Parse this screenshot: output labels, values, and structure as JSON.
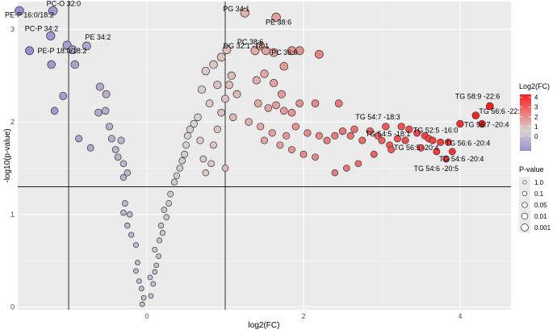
{
  "chart_data": {
    "type": "scatter",
    "xlabel": "log2(FC)",
    "ylabel": "-log10(p-value)",
    "xlim": [
      -1.65,
      4.65
    ],
    "ylim": [
      -0.03,
      3.3
    ],
    "x_ticks": [
      0,
      2,
      4
    ],
    "y_ticks": [
      0,
      1,
      2,
      3
    ],
    "grid": true,
    "background": "#ebebeb",
    "cutoff_lines": {
      "x": [
        -1,
        1
      ],
      "y": [
        1.3
      ]
    },
    "color_scale": {
      "title": "Log2(FC)",
      "range": [
        -1.5,
        4.3
      ],
      "stops": [
        {
          "value": -1.5,
          "color": "#9a8ed0"
        },
        {
          "value": 0.6,
          "color": "#d8d2d0"
        },
        {
          "value": 4.3,
          "color": "#ff1f1f"
        }
      ],
      "ticks": [
        "4",
        "3",
        "2",
        "1",
        "0"
      ]
    },
    "size_legend": {
      "title": "P-value",
      "entries": [
        "1.0",
        "0.1",
        "0.05",
        "0.01",
        "0.001"
      ]
    },
    "points": [
      [
        -1.63,
        3.2
      ],
      [
        -1.2,
        3.2
      ],
      [
        -1.5,
        2.77
      ],
      [
        -1.23,
        2.93
      ],
      [
        -1.02,
        2.83
      ],
      [
        -0.95,
        2.78
      ],
      [
        -0.77,
        2.82
      ],
      [
        -1.22,
        2.62
      ],
      [
        -0.92,
        2.62
      ],
      [
        -1.07,
        2.28
      ],
      [
        -1.18,
        2.12
      ],
      [
        -0.6,
        2.38
      ],
      [
        -0.52,
        2.3
      ],
      [
        -0.62,
        2.1
      ],
      [
        -0.53,
        2.12
      ],
      [
        -0.87,
        1.82
      ],
      [
        -0.48,
        1.95
      ],
      [
        -0.45,
        1.82
      ],
      [
        -0.4,
        1.7
      ],
      [
        -0.33,
        1.8
      ],
      [
        -0.37,
        1.62
      ],
      [
        -0.3,
        1.55
      ],
      [
        -0.72,
        1.72
      ],
      [
        -0.25,
        1.45
      ],
      [
        -0.3,
        1.4
      ],
      [
        -0.28,
        1.12
      ],
      [
        -0.3,
        1.02
      ],
      [
        -0.22,
        1.0
      ],
      [
        -0.25,
        0.88
      ],
      [
        -0.2,
        0.78
      ],
      [
        -0.14,
        0.67
      ],
      [
        -0.12,
        0.48
      ],
      [
        -0.14,
        0.39
      ],
      [
        -0.1,
        0.28
      ],
      [
        -0.07,
        0.2
      ],
      [
        -0.04,
        0.1
      ],
      [
        -0.06,
        0.03
      ],
      [
        0.05,
        0.12
      ],
      [
        0.08,
        0.25
      ],
      [
        0.04,
        0.32
      ],
      [
        0.1,
        0.38
      ],
      [
        0.12,
        0.45
      ],
      [
        0.15,
        0.55
      ],
      [
        0.1,
        0.62
      ],
      [
        0.16,
        0.72
      ],
      [
        0.2,
        0.8
      ],
      [
        0.18,
        0.88
      ],
      [
        0.25,
        0.97
      ],
      [
        0.22,
        1.05
      ],
      [
        0.28,
        1.12
      ],
      [
        0.3,
        1.22
      ],
      [
        0.35,
        1.35
      ],
      [
        0.38,
        1.42
      ],
      [
        0.42,
        1.5
      ],
      [
        0.45,
        1.58
      ],
      [
        0.48,
        1.65
      ],
      [
        0.5,
        1.75
      ],
      [
        0.52,
        1.85
      ],
      [
        0.55,
        1.92
      ],
      [
        0.6,
        1.98
      ],
      [
        0.65,
        2.05
      ],
      [
        0.68,
        1.8
      ],
      [
        0.72,
        1.6
      ],
      [
        0.75,
        1.45
      ],
      [
        0.82,
        1.55
      ],
      [
        0.85,
        1.75
      ],
      [
        0.9,
        1.92
      ],
      [
        0.95,
        2.1
      ],
      [
        1.0,
        2.25
      ],
      [
        1.05,
        2.4
      ],
      [
        0.9,
        2.4
      ],
      [
        0.8,
        2.2
      ],
      [
        0.7,
        2.35
      ],
      [
        0.75,
        2.55
      ],
      [
        0.85,
        2.62
      ],
      [
        0.95,
        2.7
      ],
      [
        1.02,
        2.78
      ],
      [
        1.08,
        2.5
      ],
      [
        1.15,
        2.3
      ],
      [
        1.1,
        2.05
      ],
      [
        1.0,
        1.5
      ],
      [
        1.25,
        3.18
      ],
      [
        1.65,
        3.13
      ],
      [
        1.38,
        2.77
      ],
      [
        1.45,
        2.82
      ],
      [
        1.52,
        2.77
      ],
      [
        1.62,
        2.75
      ],
      [
        1.75,
        2.6
      ],
      [
        1.85,
        2.77
      ],
      [
        1.95,
        2.77
      ],
      [
        2.2,
        2.73
      ],
      [
        1.4,
        2.45
      ],
      [
        1.5,
        2.52
      ],
      [
        1.62,
        2.42
      ],
      [
        1.72,
        2.3
      ],
      [
        1.42,
        2.2
      ],
      [
        1.55,
        2.15
      ],
      [
        1.65,
        2.18
      ],
      [
        1.75,
        2.12
      ],
      [
        1.85,
        2.1
      ],
      [
        1.95,
        2.2
      ],
      [
        2.15,
        2.2
      ],
      [
        1.3,
        2.0
      ],
      [
        1.45,
        1.95
      ],
      [
        1.6,
        1.88
      ],
      [
        1.78,
        1.85
      ],
      [
        1.9,
        1.95
      ],
      [
        2.05,
        1.88
      ],
      [
        2.2,
        1.85
      ],
      [
        1.5,
        1.8
      ],
      [
        1.7,
        1.75
      ],
      [
        1.85,
        1.7
      ],
      [
        2.0,
        1.65
      ],
      [
        2.15,
        1.62
      ],
      [
        2.45,
        2.2
      ],
      [
        2.3,
        1.8
      ],
      [
        2.4,
        1.85
      ],
      [
        2.5,
        1.9
      ],
      [
        2.6,
        1.85
      ],
      [
        2.65,
        1.92
      ],
      [
        2.75,
        1.8
      ],
      [
        2.85,
        1.9
      ],
      [
        2.95,
        1.85
      ],
      [
        3.05,
        1.95
      ],
      [
        2.55,
        1.5
      ],
      [
        2.4,
        1.45
      ],
      [
        2.7,
        1.55
      ],
      [
        2.9,
        1.65
      ],
      [
        3.0,
        1.8
      ],
      [
        3.1,
        1.75
      ],
      [
        3.2,
        1.82
      ],
      [
        3.25,
        1.95
      ],
      [
        3.35,
        1.92
      ],
      [
        3.45,
        1.88
      ],
      [
        3.55,
        1.85
      ],
      [
        3.3,
        1.8
      ],
      [
        3.5,
        1.72
      ],
      [
        3.6,
        1.82
      ],
      [
        3.65,
        1.8
      ],
      [
        3.75,
        1.78
      ],
      [
        3.85,
        1.78
      ],
      [
        3.9,
        1.68
      ],
      [
        3.7,
        1.68
      ],
      [
        3.12,
        1.7
      ],
      [
        3.82,
        1.6
      ],
      [
        4.0,
        1.98
      ],
      [
        4.2,
        2.07
      ],
      [
        4.38,
        2.17
      ],
      [
        4.28,
        1.98
      ]
    ],
    "annotations": [
      {
        "text": "PC-O 32:0",
        "x": -1.2,
        "y": 3.2
      },
      {
        "text": "PE-P 16:0/18:2",
        "x": -1.63,
        "y": 3.2
      },
      {
        "text": "PC-P 34:2",
        "x": -1.23,
        "y": 2.93
      },
      {
        "text": "PE 34:2",
        "x": -0.77,
        "y": 2.82
      },
      {
        "text": "PE-P 18:0/18:2",
        "x": -1.5,
        "y": 2.77
      },
      {
        "text": "PG 34:1",
        "x": 1.25,
        "y": 3.18
      },
      {
        "text": "PE 38:6",
        "x": 1.65,
        "y": 3.13
      },
      {
        "text": "PC 38:6",
        "x": 1.38,
        "y": 2.77
      },
      {
        "text": "DG 32:1 -18:1",
        "x": 1.45,
        "y": 2.82
      },
      {
        "text": "PC 36:0",
        "x": 1.62,
        "y": 2.75
      },
      {
        "text": "TG 58:9 -22:6",
        "x": 4.38,
        "y": 2.17
      },
      {
        "text": "TG 56:6 -22:4",
        "x": 4.2,
        "y": 2.07
      },
      {
        "text": "TG 56:7 -20:4",
        "x": 4.0,
        "y": 1.98
      },
      {
        "text": "TG 54:7 -18:3",
        "x": 3.25,
        "y": 1.95
      },
      {
        "text": "TG 52:5 -16:0",
        "x": 3.35,
        "y": 1.92
      },
      {
        "text": "TG 54:5 -18:1",
        "x": 3.05,
        "y": 1.95
      },
      {
        "text": "TG 56:6 -20:4",
        "x": 3.75,
        "y": 1.78
      },
      {
        "text": "TG 56:5 -20:4",
        "x": 3.65,
        "y": 1.8
      },
      {
        "text": "TG 54:6 -20:4",
        "x": 3.7,
        "y": 1.68
      },
      {
        "text": "TG 54:6 -20:5",
        "x": 3.82,
        "y": 1.6
      }
    ]
  }
}
